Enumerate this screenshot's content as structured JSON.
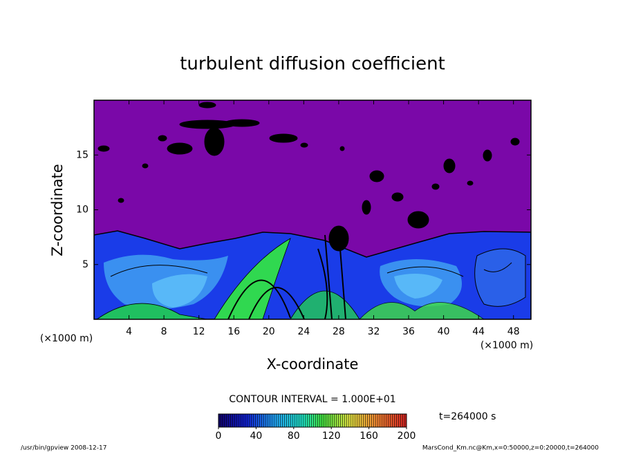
{
  "chart_data": {
    "type": "contour",
    "title": "turbulent diffusion coefficient",
    "xlabel": "X-coordinate",
    "ylabel": "Z-coordinate",
    "x_unit": "(×1000 m)",
    "xlim": [
      0,
      50
    ],
    "xticks": [
      4,
      8,
      12,
      16,
      20,
      24,
      28,
      32,
      36,
      40,
      44,
      48
    ],
    "ylim": [
      0,
      20
    ],
    "yticks": [
      5,
      10,
      15
    ],
    "contour_interval": "CONTOUR INTERVAL = 1.000E+01",
    "time": "t=264000 s",
    "colorbar": {
      "lim": [
        0,
        200
      ],
      "ticks": [
        0,
        40,
        80,
        120,
        160,
        200
      ]
    },
    "footer_left": "/usr/bin/gpview  2008-12-17",
    "footer_right": "MarsCond_Km.nc@Km,x=0:50000,z=0:20000,t=264000"
  }
}
